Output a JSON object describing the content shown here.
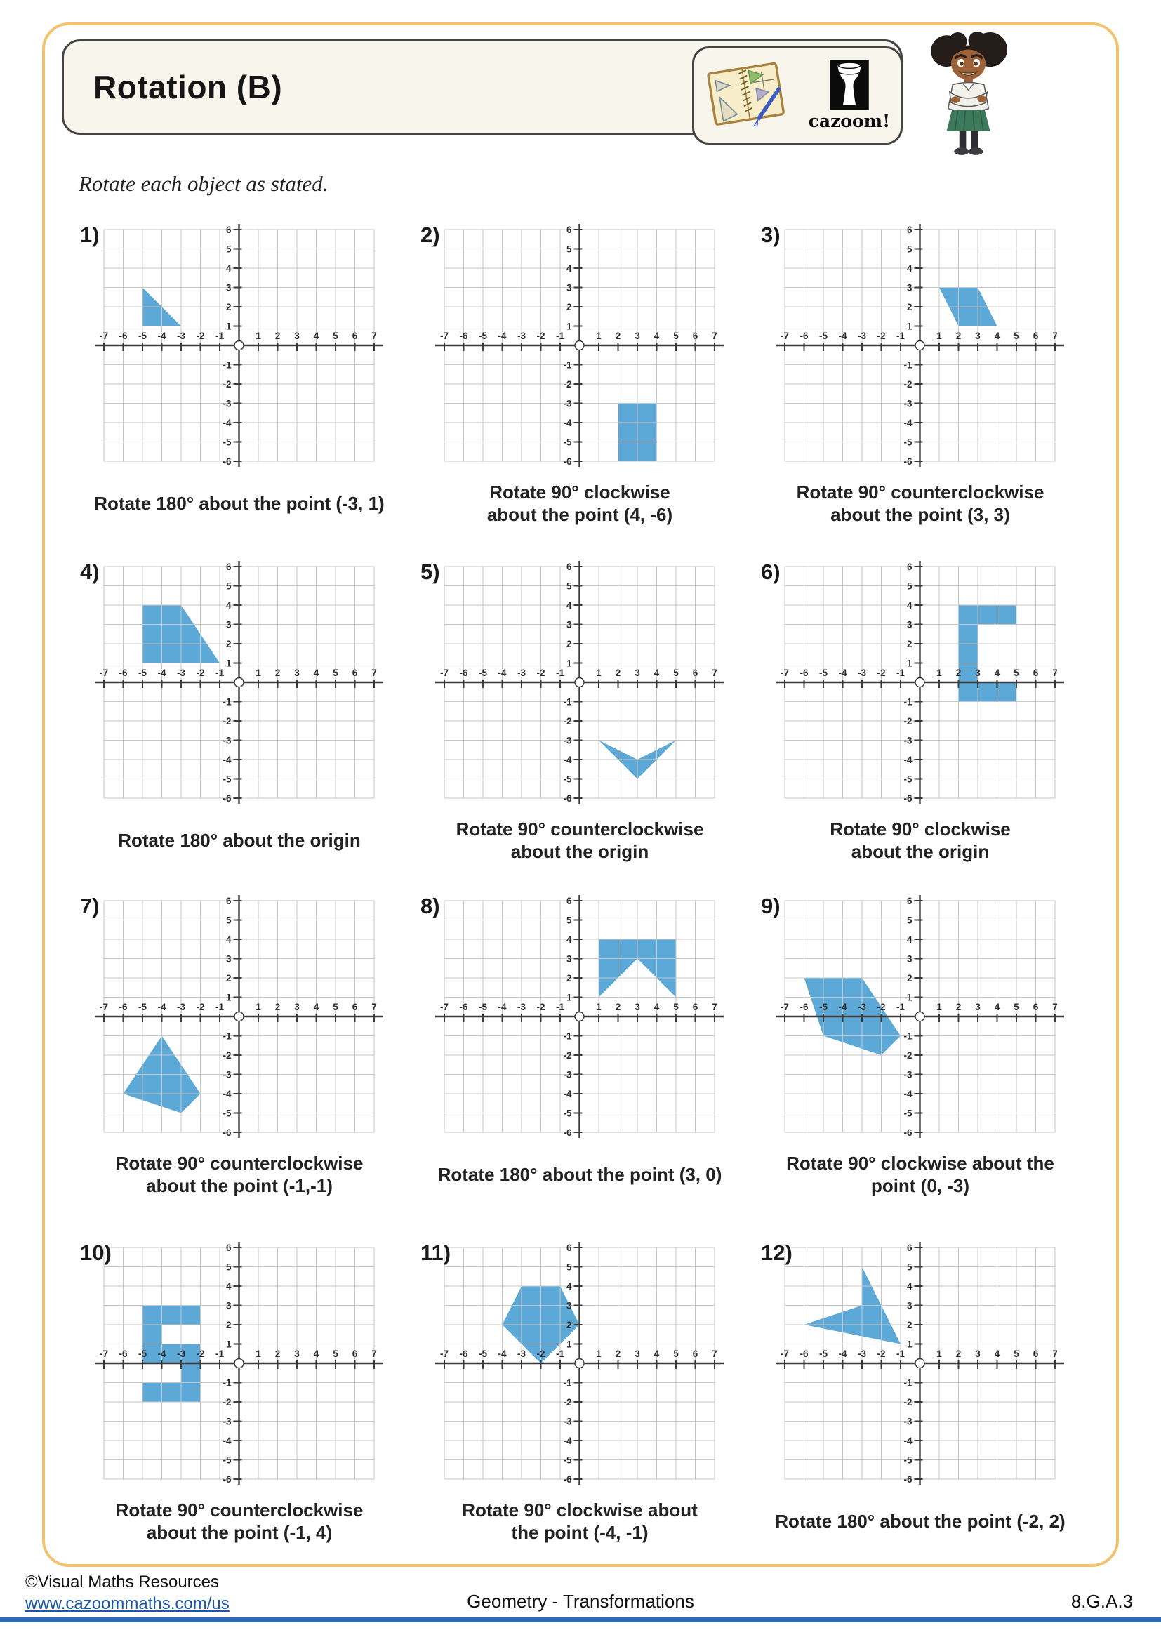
{
  "page": {
    "title": "Rotation (B)",
    "instruction": "Rotate each object as stated.",
    "logo_text": "cazoom!"
  },
  "footer": {
    "copyright": "©Visual Maths Resources",
    "url": "www.cazoommaths.com/us",
    "center": "Geometry - Transformations",
    "standard": "8.G.A.3"
  },
  "colors": {
    "shape_fill": "#5ca9d8",
    "grid_line": "#c6c6c6",
    "axis": "#3a3a3a",
    "tick_label": "#2d2d2d",
    "border_orange": "#f2c36e",
    "header_bg": "#f8f5ec",
    "footer_blue": "#2f6cb5",
    "link_blue": "#1a57a8"
  },
  "grid": {
    "xmin": -7,
    "xmax": 7,
    "ymin": -6,
    "ymax": 6
  },
  "problems": [
    {
      "number": "1)",
      "caption_lines": [
        "Rotate 180° about the point (-3, 1)"
      ],
      "shape": [
        [
          -5,
          3
        ],
        [
          -5,
          1
        ],
        [
          -3,
          1
        ]
      ]
    },
    {
      "number": "2)",
      "caption_lines": [
        "Rotate 90° clockwise",
        "about the point (4, -6)"
      ],
      "shape": [
        [
          2,
          -3
        ],
        [
          4,
          -3
        ],
        [
          4,
          -6
        ],
        [
          2,
          -6
        ]
      ]
    },
    {
      "number": "3)",
      "caption_lines": [
        "Rotate 90° counterclockwise",
        "about the point (3, 3)"
      ],
      "shape": [
        [
          1,
          3
        ],
        [
          3,
          3
        ],
        [
          4,
          1
        ],
        [
          2,
          1
        ]
      ]
    },
    {
      "number": "4)",
      "caption_lines": [
        "Rotate 180° about the origin"
      ],
      "shape": [
        [
          -5,
          4
        ],
        [
          -3,
          4
        ],
        [
          -1,
          1
        ],
        [
          -5,
          1
        ]
      ]
    },
    {
      "number": "5)",
      "caption_lines": [
        "Rotate 90° counterclockwise",
        "about the origin"
      ],
      "shape": [
        [
          1,
          -3
        ],
        [
          3,
          -4
        ],
        [
          5,
          -3
        ],
        [
          3,
          -5
        ]
      ]
    },
    {
      "number": "6)",
      "caption_lines": [
        "Rotate 90° clockwise",
        "about the origin"
      ],
      "shape": [
        [
          2,
          4
        ],
        [
          5,
          4
        ],
        [
          5,
          3
        ],
        [
          3,
          3
        ],
        [
          3,
          0
        ],
        [
          5,
          0
        ],
        [
          5,
          -1
        ],
        [
          2,
          -1
        ]
      ]
    },
    {
      "number": "7)",
      "caption_lines": [
        "Rotate 90° counterclockwise",
        "about the point (-1,-1)"
      ],
      "shape": [
        [
          -4,
          -1
        ],
        [
          -2,
          -4
        ],
        [
          -3,
          -5
        ],
        [
          -6,
          -4
        ]
      ]
    },
    {
      "number": "8)",
      "caption_lines": [
        "Rotate 180° about the point (3, 0)"
      ],
      "shape": [
        [
          1,
          4
        ],
        [
          5,
          4
        ],
        [
          5,
          1
        ],
        [
          3,
          3
        ],
        [
          1,
          1
        ]
      ]
    },
    {
      "number": "9)",
      "caption_lines": [
        "Rotate 90° clockwise about the",
        "point (0, -3)"
      ],
      "shape": [
        [
          -6,
          2
        ],
        [
          -3,
          2
        ],
        [
          -1,
          -1
        ],
        [
          -2,
          -2
        ],
        [
          -5,
          -1
        ]
      ]
    },
    {
      "number": "10)",
      "caption_lines": [
        "Rotate 90° counterclockwise",
        "about the point (-1, 4)"
      ],
      "shape": [
        [
          -5,
          3
        ],
        [
          -2,
          3
        ],
        [
          -2,
          2
        ],
        [
          -4,
          2
        ],
        [
          -4,
          1
        ],
        [
          -2,
          1
        ],
        [
          -2,
          -2
        ],
        [
          -5,
          -2
        ],
        [
          -5,
          -1
        ],
        [
          -3,
          -1
        ],
        [
          -3,
          0
        ],
        [
          -5,
          0
        ]
      ]
    },
    {
      "number": "11)",
      "caption_lines": [
        "Rotate 90° clockwise about",
        "the point (-4, -1)"
      ],
      "shape": [
        [
          -3,
          4
        ],
        [
          -1,
          4
        ],
        [
          0,
          2
        ],
        [
          -2,
          0
        ],
        [
          -4,
          2
        ]
      ]
    },
    {
      "number": "12)",
      "caption_lines": [
        "Rotate 180° about the point (-2, 2)"
      ],
      "shape": [
        [
          -3,
          5
        ],
        [
          -1,
          1
        ],
        [
          -6,
          2
        ],
        [
          -3,
          3
        ]
      ]
    }
  ]
}
